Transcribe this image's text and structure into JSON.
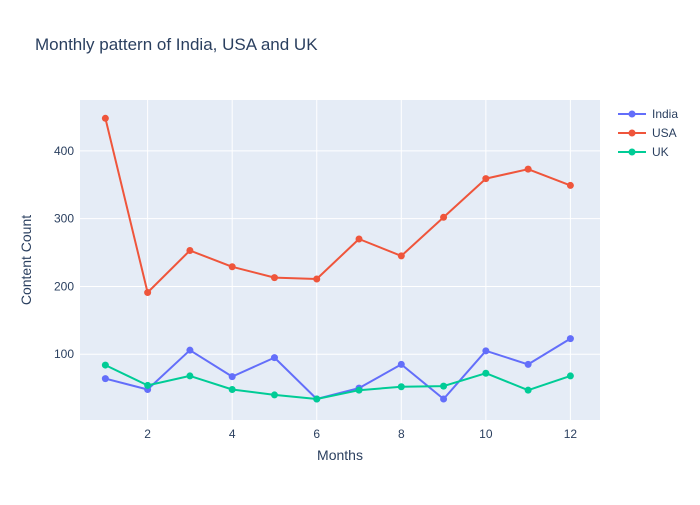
{
  "chart_data": {
    "type": "line",
    "title": "Monthly pattern of India, USA and UK",
    "xlabel": "Months",
    "ylabel": "Content Count",
    "x": [
      1,
      2,
      3,
      4,
      5,
      6,
      7,
      8,
      9,
      10,
      11,
      12
    ],
    "xlim": [
      0.4,
      12.7
    ],
    "ylim": [
      3,
      475
    ],
    "x_ticks": [
      2,
      4,
      6,
      8,
      10,
      12
    ],
    "y_ticks": [
      100,
      200,
      300,
      400
    ],
    "grid": true,
    "legend_position": "top-right",
    "series": [
      {
        "name": "India",
        "color": "#636efa",
        "values": [
          64,
          48,
          106,
          67,
          95,
          34,
          50,
          85,
          34,
          105,
          85,
          123
        ]
      },
      {
        "name": "USA",
        "color": "#ef553b",
        "values": [
          448,
          191,
          253,
          229,
          213,
          211,
          270,
          245,
          302,
          359,
          373,
          349
        ]
      },
      {
        "name": "UK",
        "color": "#00cc96",
        "values": [
          84,
          54,
          68,
          48,
          40,
          34,
          47,
          52,
          53,
          72,
          47,
          68
        ]
      }
    ],
    "colors": {
      "plot_background": "#e5ecf6",
      "grid": "#ffffff",
      "text": "#2a3f5f",
      "axis_text": "#506784"
    }
  }
}
